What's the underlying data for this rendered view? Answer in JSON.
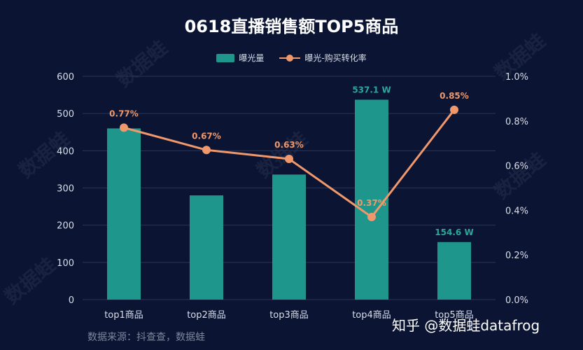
{
  "chart_data": {
    "type": "bar",
    "title": "0618直播销售额TOP5商品",
    "categories": [
      "top1商品",
      "top2商品",
      "top3商品",
      "top4商品",
      "top5商品"
    ],
    "series": [
      {
        "name": "曝光量",
        "type": "bar",
        "axis": "left",
        "values": [
          460,
          280,
          336,
          537.1,
          154.6
        ],
        "data_labels": [
          "",
          "",
          "",
          "537.1 W",
          "154.6 W"
        ],
        "color": "#1f968b"
      },
      {
        "name": "曝光-购买转化率",
        "type": "line",
        "axis": "right",
        "values": [
          0.0077,
          0.0067,
          0.0063,
          0.0037,
          0.0085
        ],
        "data_labels": [
          "0.77%",
          "0.67%",
          "0.63%",
          "0.37%",
          "0.85%"
        ],
        "color": "#f0986b"
      }
    ],
    "y_left": {
      "ylim": [
        0,
        600
      ],
      "ticks": [
        "0",
        "100",
        "200",
        "300",
        "400",
        "500",
        "600"
      ]
    },
    "y_right": {
      "ylim": [
        0,
        0.01
      ],
      "ticks": [
        "0.0%",
        "0.2%",
        "0.4%",
        "0.6%",
        "0.8%",
        "1.0%"
      ]
    },
    "grid": true,
    "legend_placement": "top-center"
  },
  "source": "数据来源：抖查查，数据蛙",
  "credit": "知乎 @数据蛙datafrog",
  "watermark": "数据蛙",
  "colors": {
    "background": "#0b1533",
    "label_bar": "#2aa79b",
    "label_line": "#f0986b"
  }
}
